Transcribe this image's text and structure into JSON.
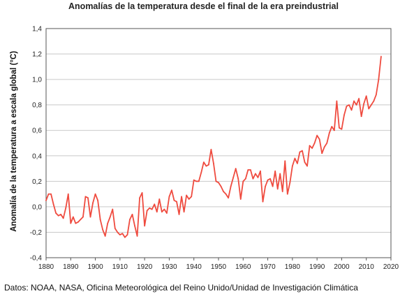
{
  "chart_data": {
    "type": "line",
    "title": "Anomalías de la temperatura desde el final de la era preindustrial",
    "xlabel": "",
    "ylabel": "Anomalía de la temperatura a escala global (°C)",
    "xlim": [
      1880,
      2020
    ],
    "ylim": [
      -0.4,
      1.4
    ],
    "x_ticks": [
      "1880",
      "1890",
      "1900",
      "1910",
      "1920",
      "1930",
      "1940",
      "1950",
      "1960",
      "1970",
      "1980",
      "1990",
      "2000",
      "2010",
      "2020"
    ],
    "y_ticks": [
      "-0,4",
      "-0,2",
      "0,0",
      "0,2",
      "0,4",
      "0,6",
      "0,8",
      "1,0",
      "1,2",
      "1,4"
    ],
    "grid": true,
    "line_color": "#ef4b3f",
    "series": [
      {
        "x": [
          1880,
          1881,
          1882,
          1883,
          1884,
          1885,
          1886,
          1887,
          1888,
          1889,
          1890,
          1891,
          1892,
          1893,
          1894,
          1895,
          1896,
          1897,
          1898,
          1899,
          1900,
          1901,
          1902,
          1903,
          1904,
          1905,
          1906,
          1907,
          1908,
          1909,
          1910,
          1911,
          1912,
          1913,
          1914,
          1915,
          1916,
          1917,
          1918,
          1919,
          1920,
          1921,
          1922,
          1923,
          1924,
          1925,
          1926,
          1927,
          1928,
          1929,
          1930,
          1931,
          1932,
          1933,
          1934,
          1935,
          1936,
          1937,
          1938,
          1939,
          1940,
          1941,
          1942,
          1943,
          1944,
          1945,
          1946,
          1947,
          1948,
          1949,
          1950,
          1951,
          1952,
          1953,
          1954,
          1955,
          1956,
          1957,
          1958,
          1959,
          1960,
          1961,
          1962,
          1963,
          1964,
          1965,
          1966,
          1967,
          1968,
          1969,
          1970,
          1971,
          1972,
          1973,
          1974,
          1975,
          1976,
          1977,
          1978,
          1979,
          1980,
          1981,
          1982,
          1983,
          1984,
          1985,
          1986,
          1987,
          1988,
          1989,
          1990,
          1991,
          1992,
          1993,
          1994,
          1995,
          1996,
          1997,
          1998,
          1999,
          2000,
          2001,
          2002,
          2003,
          2004,
          2005,
          2006,
          2007,
          2008,
          2009,
          2010,
          2011,
          2012,
          2013,
          2014,
          2015,
          2016
        ],
        "values": [
          0.05,
          0.1,
          0.1,
          0.02,
          -0.05,
          -0.07,
          -0.06,
          -0.09,
          -0.01,
          0.1,
          -0.13,
          -0.08,
          -0.13,
          -0.12,
          -0.1,
          -0.08,
          0.08,
          0.07,
          -0.08,
          0.03,
          0.1,
          0.05,
          -0.1,
          -0.18,
          -0.23,
          -0.13,
          -0.08,
          -0.02,
          -0.17,
          -0.2,
          -0.22,
          -0.21,
          -0.24,
          -0.22,
          -0.1,
          -0.06,
          -0.15,
          -0.23,
          0.07,
          0.11,
          -0.15,
          -0.03,
          -0.01,
          -0.02,
          0.02,
          -0.04,
          0.06,
          -0.04,
          -0.02,
          -0.05,
          0.08,
          0.13,
          0.05,
          0.04,
          -0.06,
          0.08,
          -0.04,
          0.09,
          0.06,
          0.08,
          0.21,
          0.2,
          0.2,
          0.27,
          0.35,
          0.32,
          0.33,
          0.45,
          0.34,
          0.2,
          0.19,
          0.16,
          0.12,
          0.1,
          0.07,
          0.16,
          0.23,
          0.3,
          0.22,
          0.06,
          0.2,
          0.22,
          0.29,
          0.29,
          0.22,
          0.26,
          0.23,
          0.28,
          0.04,
          0.16,
          0.21,
          0.22,
          0.16,
          0.28,
          0.14,
          0.26,
          0.12,
          0.36,
          0.1,
          0.19,
          0.32,
          0.38,
          0.34,
          0.43,
          0.44,
          0.35,
          0.32,
          0.48,
          0.46,
          0.5,
          0.56,
          0.53,
          0.42,
          0.47,
          0.5,
          0.58,
          0.63,
          0.6,
          0.83,
          0.62,
          0.61,
          0.72,
          0.79,
          0.8,
          0.76,
          0.83,
          0.8,
          0.85,
          0.71,
          0.81,
          0.87,
          0.77,
          0.8,
          0.83,
          0.88,
          1.0,
          1.18
        ]
      }
    ],
    "source": "Datos: NOAA, NASA, Oficina Meteorológica del Reino Unido/Unidad de Investigación Climática"
  }
}
